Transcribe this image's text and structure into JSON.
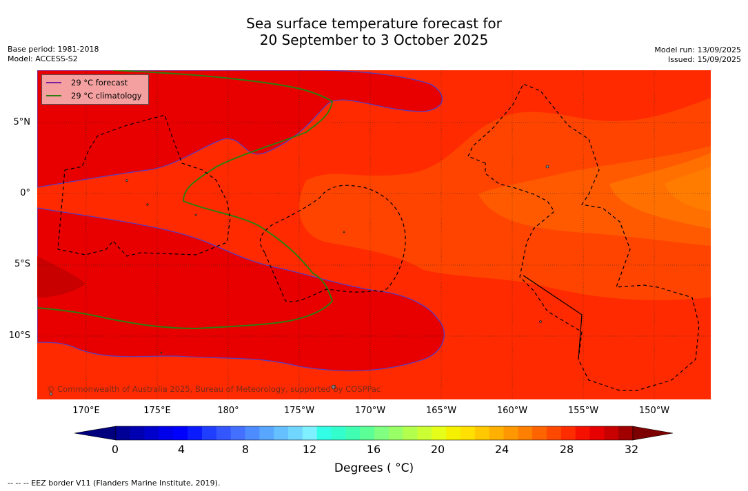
{
  "title_line1": "Sea surface temperature forecast for",
  "title_line2": "20 September to 3 October 2025",
  "meta_left": [
    "Base period: 1981-2018",
    "Model: ACCESS-S2"
  ],
  "meta_right": [
    "Model run: 13/09/2025",
    "Issued: 15/09/2025"
  ],
  "legend": [
    {
      "label": "29 °C  forecast",
      "color": "#7a1fa0"
    },
    {
      "label": "29 °C  climatology",
      "color": "#2e7d10"
    }
  ],
  "copyright": "© Commonwealth of Australia 2025, Bureau of Meteorology, supported by COSPPac",
  "longitude_labels": [
    "170°E",
    "175°E",
    "180°",
    "175°W",
    "170°W",
    "165°W",
    "160°W",
    "155°W",
    "150°W"
  ],
  "latitude_labels": [
    "5°N",
    "0°",
    "5°S",
    "10°S"
  ],
  "colorbar": {
    "ticks": [
      "0",
      "4",
      "8",
      "12",
      "16",
      "20",
      "24",
      "28",
      "32"
    ],
    "label": "Degrees ( °C)",
    "colors": [
      "#00007f",
      "#000097",
      "#0000b2",
      "#0000cc",
      "#0000ea",
      "#0000ff",
      "#0a1cff",
      "#1f3eff",
      "#3356ff",
      "#4370ff",
      "#4d8cff",
      "#59a6ff",
      "#66bfff",
      "#71d6ff",
      "#7ff0ff",
      "#33ffe6",
      "#33ffcc",
      "#40ffb2",
      "#5cff96",
      "#80ff80",
      "#99ff66",
      "#b3ff4d",
      "#ccff33",
      "#e6ff1a",
      "#f5f000",
      "#ffe000",
      "#ffc800",
      "#ffb000",
      "#ff9800",
      "#ff7f00",
      "#ff6400",
      "#ff4800",
      "#ff2c00",
      "#f51000",
      "#e60000",
      "#c80000",
      "#a00000",
      "#7d0000"
    ]
  },
  "eez_note": "--  --  -- EEZ border V11 (Flanders Marine Institute, 2019).",
  "colors": {
    "background_sst": "#ff3a00",
    "warm_core": "#e60000",
    "cool_tongue": "#ff6a00",
    "cooler_core": "#ff7700"
  }
}
